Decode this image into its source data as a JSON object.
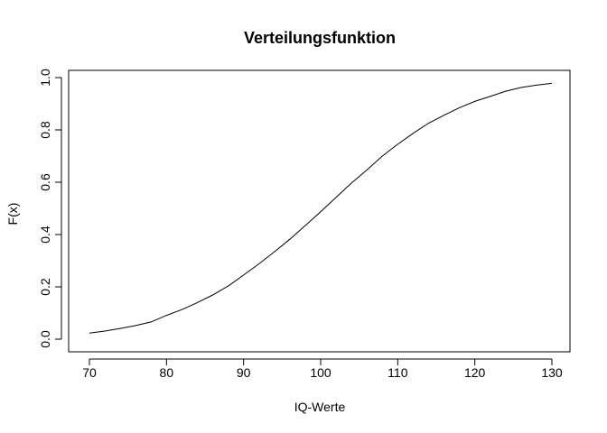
{
  "chart_data": {
    "type": "line",
    "title": "Verteilungsfunktion",
    "xlabel": "IQ-Werte",
    "ylabel": "F(x)",
    "xlim": [
      70,
      130
    ],
    "ylim": [
      0,
      1
    ],
    "x_ticks": [
      "70",
      "80",
      "90",
      "100",
      "110",
      "120",
      "130"
    ],
    "y_ticks": [
      "0.0",
      "0.2",
      "0.4",
      "0.6",
      "0.8",
      "1.0"
    ],
    "grid": false,
    "legend": "none",
    "line_color": "#000000",
    "series": [
      {
        "x": [
          70,
          72,
          74,
          76,
          78,
          80,
          82,
          84,
          86,
          88,
          90,
          92,
          94,
          96,
          98,
          100,
          102,
          104,
          106,
          108,
          110,
          112,
          114,
          116,
          118,
          120,
          122,
          124,
          126,
          128,
          130
        ],
        "values": [
          0.023,
          0.031,
          0.041,
          0.052,
          0.066,
          0.091,
          0.113,
          0.14,
          0.169,
          0.203,
          0.245,
          0.288,
          0.334,
          0.382,
          0.434,
          0.487,
          0.542,
          0.597,
          0.647,
          0.7,
          0.745,
          0.787,
          0.826,
          0.856,
          0.885,
          0.909,
          0.928,
          0.948,
          0.962,
          0.971,
          0.978
        ]
      }
    ]
  }
}
